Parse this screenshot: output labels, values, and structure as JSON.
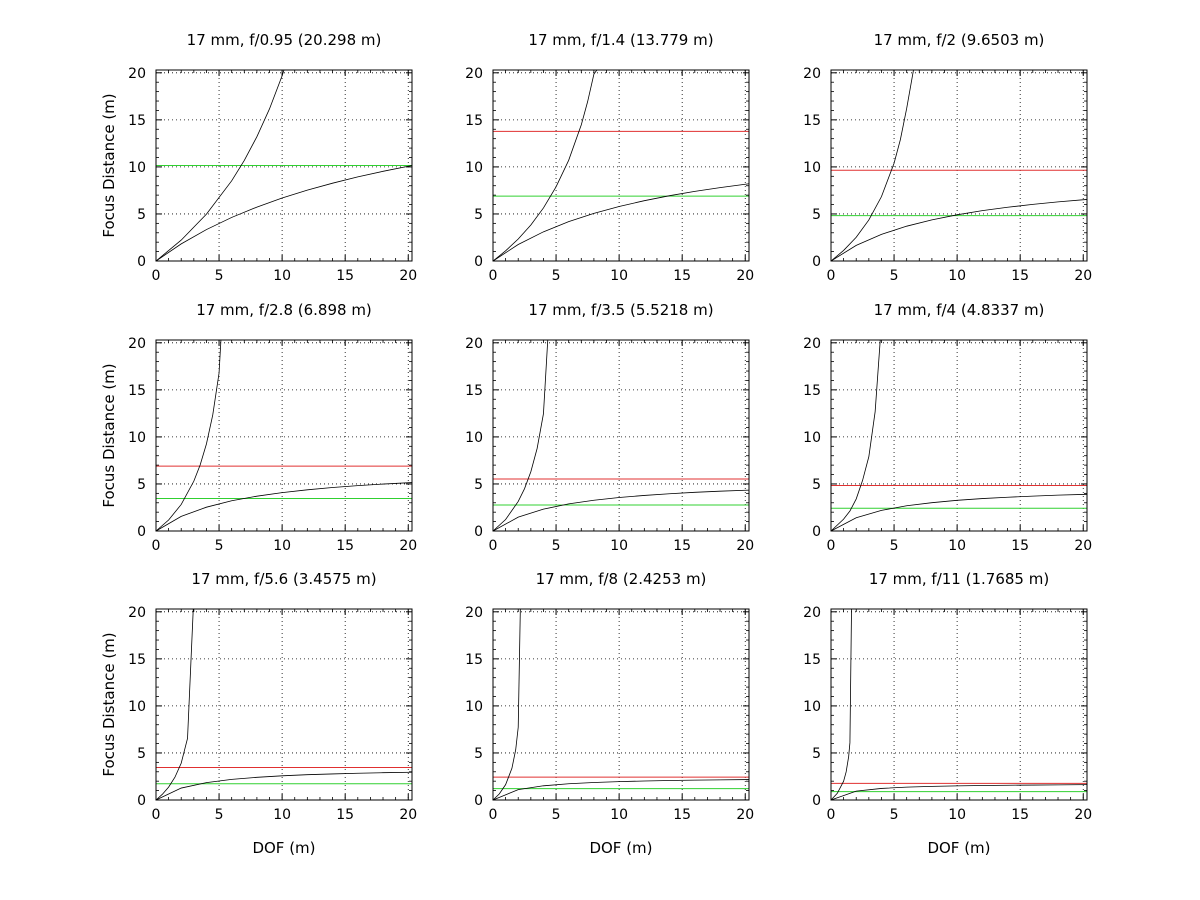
{
  "figure": {
    "background": "#ffffff"
  },
  "colors": {
    "curve": "#000000",
    "red_line": "#e03030",
    "green_line": "#30d030",
    "grid": "#000000"
  },
  "chart_data": [
    {
      "type": "line",
      "title": "17 mm, f/0.95 (20.298 m)",
      "xlabel": "",
      "ylabel": "Focus Distance (m)",
      "xlim": [
        0,
        20.298
      ],
      "ylim": [
        0,
        20.298
      ],
      "xticks": [
        0,
        5,
        10,
        15,
        20
      ],
      "yticks": [
        0,
        5,
        10,
        15,
        20
      ],
      "grid": true,
      "hyperfocal_m": 20.298,
      "red_line_y": 20.298,
      "green_line_y": 10.149,
      "series": [
        {
          "x": [
            0,
            2,
            4,
            6,
            8,
            10,
            12,
            14,
            16,
            18,
            20.298
          ],
          "y": [
            0,
            1.82,
            3.34,
            4.63,
            5.73,
            6.69,
            7.53,
            8.27,
            8.94,
            9.53,
            10.15
          ]
        },
        {
          "x": [
            0,
            2,
            4,
            6,
            7,
            8,
            9,
            10,
            10.149
          ],
          "y": [
            0,
            2.22,
            4.98,
            8.52,
            10.69,
            13.21,
            16.17,
            19.69,
            20.3
          ]
        }
      ]
    },
    {
      "type": "line",
      "title": "17 mm, f/1.4 (13.779 m)",
      "xlabel": "",
      "ylabel": "",
      "xlim": [
        0,
        20.298
      ],
      "ylim": [
        0,
        20.298
      ],
      "xticks": [
        0,
        5,
        10,
        15,
        20
      ],
      "yticks": [
        0,
        5,
        10,
        15,
        20
      ],
      "grid": true,
      "hyperfocal_m": 13.779,
      "red_line_y": 13.779,
      "green_line_y": 6.89,
      "series": [
        {
          "x": [
            0,
            2,
            4,
            6,
            8,
            10,
            12,
            14,
            16,
            18,
            20.298
          ],
          "y": [
            0,
            1.75,
            3.1,
            4.18,
            5.06,
            5.79,
            6.41,
            6.94,
            7.4,
            7.8,
            8.21
          ]
        },
        {
          "x": [
            0,
            1,
            2,
            3,
            4,
            5,
            6,
            7,
            7.5,
            8,
            8.235
          ],
          "y": [
            0,
            1.08,
            2.34,
            3.83,
            5.64,
            7.88,
            10.7,
            14.47,
            16.92,
            19.86,
            20.3
          ]
        }
      ]
    },
    {
      "type": "line",
      "title": "17 mm, f/2 (9.6503 m)",
      "xlabel": "",
      "ylabel": "",
      "xlim": [
        0,
        20.298
      ],
      "ylim": [
        0,
        20.298
      ],
      "xticks": [
        0,
        5,
        10,
        15,
        20
      ],
      "yticks": [
        0,
        5,
        10,
        15,
        20
      ],
      "grid": true,
      "hyperfocal_m": 9.6503,
      "red_line_y": 9.6503,
      "green_line_y": 4.8252,
      "series": [
        {
          "x": [
            0,
            2,
            4,
            6,
            8,
            10,
            12,
            14,
            16,
            18,
            20.298
          ],
          "y": [
            0,
            1.66,
            2.83,
            3.7,
            4.37,
            4.91,
            5.35,
            5.71,
            6.02,
            6.28,
            6.54
          ]
        },
        {
          "x": [
            0,
            1,
            2,
            3,
            4,
            5,
            5.5,
            6,
            6.541
          ],
          "y": [
            0,
            1.12,
            2.52,
            4.36,
            6.84,
            10.39,
            12.9,
            16.21,
            20.3
          ]
        }
      ]
    },
    {
      "type": "line",
      "title": "17 mm, f/2.8 (6.898 m)",
      "xlabel": "",
      "ylabel": "Focus Distance (m)",
      "xlim": [
        0,
        20.298
      ],
      "ylim": [
        0,
        20.298
      ],
      "xticks": [
        0,
        5,
        10,
        15,
        20
      ],
      "yticks": [
        0,
        5,
        10,
        15,
        20
      ],
      "grid": true,
      "hyperfocal_m": 6.898,
      "red_line_y": 6.898,
      "green_line_y": 3.449,
      "series": [
        {
          "x": [
            0,
            2,
            4,
            6,
            8,
            10,
            12,
            14,
            16,
            18,
            20.298
          ],
          "y": [
            0,
            1.55,
            2.53,
            3.21,
            3.7,
            4.08,
            4.38,
            4.62,
            4.82,
            4.99,
            5.15
          ]
        },
        {
          "x": [
            0,
            1,
            2,
            3,
            3.5,
            4,
            4.5,
            5,
            5.148
          ],
          "y": [
            0,
            1.17,
            2.82,
            5.3,
            7.01,
            9.26,
            12.33,
            16.79,
            20.3
          ]
        }
      ]
    },
    {
      "type": "line",
      "title": "17 mm, f/3.5 (5.5218 m)",
      "xlabel": "",
      "ylabel": "",
      "xlim": [
        0,
        20.298
      ],
      "ylim": [
        0,
        20.298
      ],
      "xticks": [
        0,
        5,
        10,
        15,
        20
      ],
      "yticks": [
        0,
        5,
        10,
        15,
        20
      ],
      "grid": true,
      "hyperfocal_m": 5.5218,
      "red_line_y": 5.5218,
      "green_line_y": 2.7609,
      "series": [
        {
          "x": [
            0,
            2,
            4,
            6,
            8,
            10,
            12,
            14,
            16,
            18,
            20.298
          ],
          "y": [
            0,
            1.47,
            2.32,
            2.88,
            3.27,
            3.56,
            3.78,
            3.96,
            4.11,
            4.23,
            4.34
          ]
        },
        {
          "x": [
            0,
            1,
            2,
            2.5,
            3,
            3.5,
            4,
            4.341
          ],
          "y": [
            0,
            1.22,
            3.14,
            4.5,
            6.3,
            8.78,
            12.46,
            20.3
          ]
        }
      ]
    },
    {
      "type": "line",
      "title": "17 mm, f/4 (4.8337 m)",
      "xlabel": "",
      "ylabel": "",
      "xlim": [
        0,
        20.298
      ],
      "ylim": [
        0,
        20.298
      ],
      "xticks": [
        0,
        5,
        10,
        15,
        20
      ],
      "yticks": [
        0,
        5,
        10,
        15,
        20
      ],
      "grid": true,
      "hyperfocal_m": 4.8337,
      "red_line_y": 4.8337,
      "green_line_y": 2.4169,
      "series": [
        {
          "x": [
            0,
            2,
            4,
            6,
            8,
            10,
            12,
            14,
            16,
            18,
            20.298
          ],
          "y": [
            0,
            1.41,
            2.19,
            2.68,
            3.01,
            3.26,
            3.45,
            3.59,
            3.71,
            3.81,
            3.9
          ]
        },
        {
          "x": [
            0,
            1,
            1.5,
            2,
            2.5,
            3,
            3.5,
            3.904
          ],
          "y": [
            0,
            1.26,
            2.12,
            3.41,
            5.36,
            7.9,
            12.68,
            20.3
          ]
        }
      ]
    },
    {
      "type": "line",
      "title": "17 mm, f/5.6 (3.4575 m)",
      "xlabel": "DOF (m)",
      "ylabel": "Focus Distance (m)",
      "xlim": [
        0,
        20.298
      ],
      "ylim": [
        0,
        20.298
      ],
      "xticks": [
        0,
        5,
        10,
        15,
        20
      ],
      "yticks": [
        0,
        5,
        10,
        15,
        20
      ],
      "grid": true,
      "hyperfocal_m": 3.4575,
      "red_line_y": 3.4575,
      "green_line_y": 1.7288,
      "series": [
        {
          "x": [
            0,
            2,
            4,
            6,
            8,
            10,
            12,
            14,
            16,
            18,
            20.298
          ],
          "y": [
            0,
            1.27,
            1.85,
            2.19,
            2.41,
            2.57,
            2.69,
            2.77,
            2.84,
            2.9,
            2.95
          ]
        },
        {
          "x": [
            0,
            0.5,
            1,
            1.5,
            2,
            2.5,
            2.954
          ],
          "y": [
            0,
            0.6,
            1.37,
            2.42,
            3.92,
            6.55,
            20.3
          ]
        }
      ]
    },
    {
      "type": "line",
      "title": "17 mm, f/8 (2.4253 m)",
      "xlabel": "DOF (m)",
      "ylabel": "",
      "xlim": [
        0,
        20.298
      ],
      "ylim": [
        0,
        20.298
      ],
      "xticks": [
        0,
        5,
        10,
        15,
        20
      ],
      "yticks": [
        0,
        5,
        10,
        15,
        20
      ],
      "grid": true,
      "hyperfocal_m": 2.4253,
      "red_line_y": 2.4253,
      "green_line_y": 1.2127,
      "series": [
        {
          "x": [
            0,
            2,
            4,
            6,
            8,
            10,
            12,
            14,
            16,
            18,
            20.298
          ],
          "y": [
            0,
            1.1,
            1.51,
            1.73,
            1.86,
            1.95,
            2.02,
            2.07,
            2.11,
            2.14,
            2.17
          ]
        },
        {
          "x": [
            0,
            0.5,
            1,
            1.5,
            1.8,
            2,
            2.167
          ],
          "y": [
            0,
            0.65,
            1.63,
            3.37,
            5.34,
            7.73,
            20.3
          ]
        }
      ]
    },
    {
      "type": "line",
      "title": "17 mm, f/11 (1.7685 m)",
      "xlabel": "DOF (m)",
      "ylabel": "",
      "xlim": [
        0,
        20.298
      ],
      "ylim": [
        0,
        20.298
      ],
      "xticks": [
        0,
        5,
        10,
        15,
        20
      ],
      "yticks": [
        0,
        5,
        10,
        15,
        20
      ],
      "grid": true,
      "hyperfocal_m": 1.7685,
      "red_line_y": 1.7685,
      "green_line_y": 0.8843,
      "series": [
        {
          "x": [
            0,
            2,
            4,
            6,
            8,
            10,
            12,
            14,
            16,
            18,
            20.298
          ],
          "y": [
            0,
            0.94,
            1.23,
            1.37,
            1.45,
            1.5,
            1.54,
            1.57,
            1.59,
            1.61,
            1.63
          ]
        },
        {
          "x": [
            0,
            0.5,
            1,
            1.2,
            1.4,
            1.5,
            1.627
          ],
          "y": [
            0,
            0.71,
            2.0,
            2.98,
            4.62,
            6.09,
            20.3
          ]
        }
      ]
    }
  ]
}
